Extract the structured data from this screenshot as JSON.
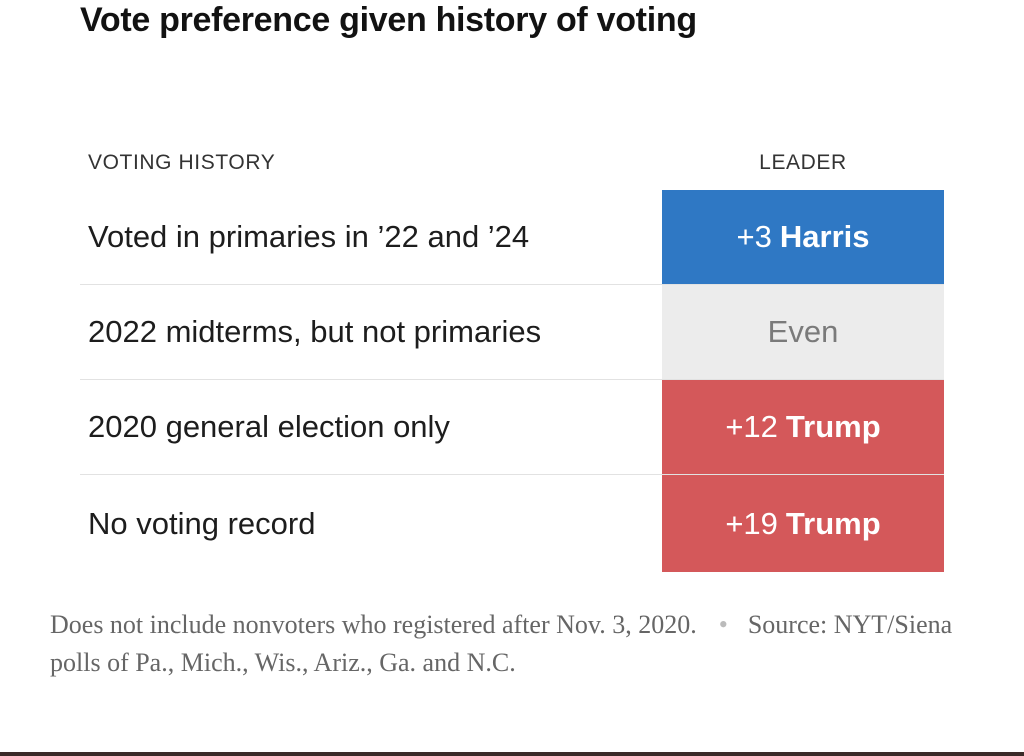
{
  "title": "Vote preference given history of voting",
  "colors": {
    "harris": "#2f78c4",
    "trump": "#d4585a",
    "even": "#ececec",
    "even_text": "#7a7a7a",
    "lead_text": "#ffffff"
  },
  "chart_data": {
    "type": "table",
    "title": "Vote preference given history of voting",
    "columns": [
      "VOTING HISTORY",
      "LEADER"
    ],
    "rows": [
      {
        "voting_history": "Voted in primaries in ’22 and ’24",
        "margin": "+3",
        "leader": "Harris",
        "party": "harris",
        "margin_value": 3
      },
      {
        "voting_history": "2022 midterms, but not primaries",
        "margin": "",
        "leader": "Even",
        "party": "even",
        "margin_value": 0
      },
      {
        "voting_history": "2020 general election only",
        "margin": "+12",
        "leader": "Trump",
        "party": "trump",
        "margin_value": 12
      },
      {
        "voting_history": "No voting record",
        "margin": "+19",
        "leader": "Trump",
        "party": "trump",
        "margin_value": 19
      }
    ]
  },
  "footnote": {
    "note": "Does not include nonvoters who registered after Nov. 3, 2020.",
    "source": "Source: NYT/Siena polls of Pa., Mich., Wis., Ariz., Ga. and N.C."
  }
}
